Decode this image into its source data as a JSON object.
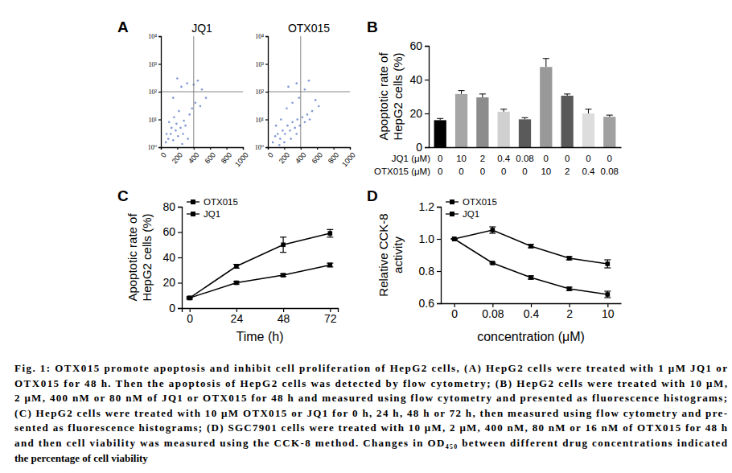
{
  "chart_data": [
    {
      "type": "scatter",
      "annotations": [
        "A"
      ],
      "title": "JQ1",
      "x": [
        60,
        90,
        120,
        150,
        180,
        210,
        240,
        270,
        300,
        330,
        100,
        160,
        220,
        280,
        350,
        380,
        420,
        150,
        250,
        320,
        400,
        450,
        500,
        200,
        550,
        480,
        130,
        70,
        260,
        190
      ],
      "values": [
        1.5,
        2,
        3,
        1.8,
        4,
        2.5,
        5,
        3,
        6,
        2,
        8,
        12,
        20,
        9,
        15,
        25,
        40,
        60,
        150,
        200,
        180,
        250,
        120,
        300,
        60,
        30,
        5,
        3,
        1.3,
        7
      ],
      "xlim": [
        0,
        1000
      ],
      "ylim": [
        1,
        10000
      ],
      "log": "y",
      "xticks": [
        0,
        200,
        400,
        600,
        800,
        1000
      ],
      "yticks": [
        {
          "value": 1,
          "label": "10⁰"
        },
        {
          "value": 10,
          "label": "10¹"
        },
        {
          "value": 100,
          "label": "10²"
        },
        {
          "value": 1000,
          "label": "10³"
        },
        {
          "value": 10000,
          "label": "10⁴"
        }
      ],
      "quadrant": {
        "x": 400,
        "y": 100
      },
      "color": "#4a6cc4",
      "marker": "dot"
    },
    {
      "type": "scatter",
      "title": "OTX015",
      "x": [
        60,
        90,
        120,
        150,
        180,
        210,
        240,
        270,
        300,
        330,
        360,
        390,
        420,
        450,
        480,
        510,
        540,
        200,
        280,
        350,
        100,
        160,
        230,
        300,
        380,
        450,
        250,
        350,
        500,
        580,
        620,
        140
      ],
      "values": [
        1.5,
        2.5,
        3,
        2,
        4,
        3,
        6,
        4,
        8,
        5,
        10,
        6,
        12,
        8,
        15,
        10,
        20,
        1.5,
        2,
        3,
        6,
        10,
        25,
        40,
        60,
        120,
        150,
        200,
        250,
        50,
        30,
        1.2
      ],
      "xlim": [
        0,
        1000
      ],
      "ylim": [
        1,
        10000
      ],
      "log": "y",
      "xticks": [
        0,
        200,
        400,
        600,
        800,
        1000
      ],
      "yticks": [
        {
          "value": 1,
          "label": "10⁰"
        },
        {
          "value": 10,
          "label": "10¹"
        },
        {
          "value": 100,
          "label": "10²"
        },
        {
          "value": 1000,
          "label": "10³"
        },
        {
          "value": 10000,
          "label": "10⁴"
        }
      ],
      "quadrant": {
        "x": 400,
        "y": 100
      },
      "color": "#4a6cc4",
      "marker": "dot"
    },
    {
      "type": "bar",
      "annotations": [
        "B"
      ],
      "ylabel": [
        "Apoptotic rate of",
        "HepG2 cells (%)"
      ],
      "category_titles": [
        "JQ1 (μM)",
        "OTX015 (μM)"
      ],
      "categories": [
        [
          "0",
          "0"
        ],
        [
          "10",
          "0"
        ],
        [
          "2",
          "0"
        ],
        [
          "0.4",
          "0"
        ],
        [
          "0.08",
          "0"
        ],
        [
          "0",
          "10"
        ],
        [
          "0",
          "2"
        ],
        [
          "0",
          "0.4"
        ],
        [
          "0",
          "0.08"
        ]
      ],
      "values": [
        16,
        31.5,
        29.5,
        21,
        16.5,
        47.5,
        30.5,
        20,
        18
      ],
      "errors": [
        1,
        2,
        2,
        1.5,
        1,
        5,
        1,
        2.5,
        1
      ],
      "colors": [
        "#000000",
        "#a6a6a6",
        "#8c8c8c",
        "#d0d0d0",
        "#5a5a5a",
        "#999999",
        "#595959",
        "#dddddd",
        "#a0a0a0"
      ],
      "ylim": [
        0,
        60
      ],
      "yticks": [
        0,
        20,
        40,
        60
      ]
    },
    {
      "type": "line",
      "annotations": [
        "C"
      ],
      "xlabel": "Time (h)",
      "ylabel": [
        "Apoptotic rate of",
        "HepG2 cells (%)"
      ],
      "x": [
        0,
        24,
        48,
        72
      ],
      "xlim": [
        -4,
        76
      ],
      "xticks": [
        0,
        24,
        48,
        72
      ],
      "ylim": [
        0,
        80
      ],
      "yticks": [
        0,
        20,
        40,
        60,
        80
      ],
      "legend": "upper left",
      "series": [
        {
          "name": "OTX015",
          "color": "#000000",
          "marker": "square",
          "values": [
            8,
            33,
            50,
            59
          ],
          "errors": [
            1,
            1.5,
            6,
            3
          ]
        },
        {
          "name": "JQ1",
          "color": "#000000",
          "marker": "square",
          "values": [
            8,
            20,
            26,
            34
          ],
          "errors": [
            0.5,
            1,
            1,
            1.5
          ]
        }
      ]
    },
    {
      "type": "line",
      "annotations": [
        "D"
      ],
      "xlabel": "concentration (μM)",
      "ylabel": [
        "Relative CCK-8",
        "activity"
      ],
      "categories": [
        "0",
        "0.08",
        "0.4",
        "2",
        "10"
      ],
      "ylim": [
        0.6,
        1.2
      ],
      "yticks": [
        0.6,
        0.8,
        {
          "value": 1,
          "label": "1.0"
        },
        1.2
      ],
      "legend": "upper left",
      "series": [
        {
          "name": "OTX015",
          "color": "#000000",
          "marker": "square",
          "values": [
            1,
            0.85,
            0.76,
            0.69,
            0.655
          ],
          "errors": [
            0,
            0.005,
            0.01,
            0.01,
            0.02
          ]
        },
        {
          "name": "JQ1",
          "color": "#000000",
          "marker": "square",
          "values": [
            1,
            1.055,
            0.955,
            0.88,
            0.845
          ],
          "errors": [
            0,
            0.02,
            0.01,
            0.01,
            0.025
          ]
        }
      ]
    }
  ],
  "caption": [
    "Fig. 1: OTX015 promote apoptosis and inhibit cell proliferation of HepG2 cells, (A) HepG2 cells were treated with 1 μM JQ1 or",
    "OTX015 for 48 h. Then the apoptosis of HepG2 cells was detected by flow cytometry; (B) HepG2 cells were treated with 10 μM,",
    "2 μM, 400 nM or 80 nM of JQ1 or OTX015 for 48 h and measured using flow cytometry and presented as fluorescence histograms;",
    "(C) HepG2 cells were treated with 10 μM OTX015 or JQ1 for 0 h, 24 h, 48 h or 72 h, then measured using flow cytometry and pre-",
    "sented as fluorescence histograms; (D) SGC7901 cells were treated with 10 μM, 2 μM, 400 nM, 80 nM or 16 nM of OTX015 for 48 h",
    "and then cell viability was measured using the CCK-8 method. Changes in OD₄₅₀ between different drug concentrations indicated",
    "the percentage of cell viability"
  ]
}
